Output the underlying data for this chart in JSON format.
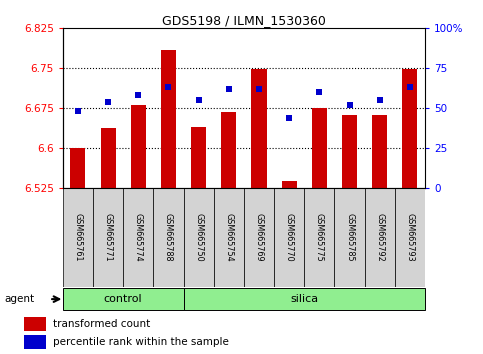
{
  "title": "GDS5198 / ILMN_1530360",
  "samples": [
    "GSM665761",
    "GSM665771",
    "GSM665774",
    "GSM665788",
    "GSM665750",
    "GSM665754",
    "GSM665769",
    "GSM665770",
    "GSM665775",
    "GSM665785",
    "GSM665792",
    "GSM665793"
  ],
  "groups": [
    "control",
    "control",
    "control",
    "control",
    "silica",
    "silica",
    "silica",
    "silica",
    "silica",
    "silica",
    "silica",
    "silica"
  ],
  "red_values": [
    6.6,
    6.638,
    6.68,
    6.785,
    6.64,
    6.668,
    6.748,
    6.538,
    6.675,
    6.662,
    6.662,
    6.748
  ],
  "blue_pct": [
    48,
    54,
    58,
    63,
    55,
    62,
    62,
    44,
    60,
    52,
    55,
    63
  ],
  "y_min": 6.525,
  "y_max": 6.825,
  "y_ticks_left": [
    6.525,
    6.6,
    6.675,
    6.75,
    6.825
  ],
  "y_ticks_right": [
    0,
    25,
    50,
    75,
    100
  ],
  "bar_color": "#cc0000",
  "dot_color": "#0000cc",
  "group_color": "#90ee90",
  "label_box_color": "#d3d3d3",
  "bg_color": "#ffffff",
  "control_label": "control",
  "silica_label": "silica",
  "agent_label": "agent",
  "legend_red": "transformed count",
  "legend_blue": "percentile rank within the sample",
  "grid_lines": [
    6.6,
    6.675,
    6.75
  ],
  "control_indices": [
    0,
    1,
    2,
    3
  ],
  "silica_indices": [
    4,
    5,
    6,
    7,
    8,
    9,
    10,
    11
  ]
}
